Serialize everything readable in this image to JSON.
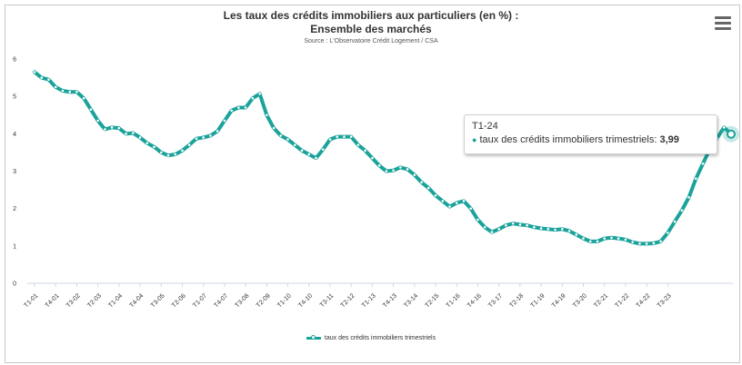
{
  "chart_data": {
    "type": "line",
    "title_line1": "Les taux des crédits immobiliers aux particuliers (en %) :",
    "title_line2": "Ensemble des marchés",
    "subtitle": "Source : L'Observatoire Crédit Logement / CSA",
    "ylim": [
      0,
      6
    ],
    "yticks": [
      0,
      1,
      2,
      3,
      4,
      5,
      6
    ],
    "grid": false,
    "legend_position": "bottom",
    "color": "#1aa39a",
    "x_tick_labels": [
      "T1-01",
      "T4-01",
      "T3-02",
      "T2-03",
      "T1-04",
      "T4-04",
      "T3-05",
      "T2-06",
      "T1-07",
      "T4-07",
      "T3-08",
      "T2-09",
      "T1-10",
      "T4-10",
      "T3-11",
      "T2-12",
      "T1-13",
      "T4-13",
      "T3-14",
      "T2-15",
      "T1-16",
      "T4-16",
      "T3-17",
      "T2-18",
      "T1-19",
      "T4-19",
      "T3-20",
      "T2-21",
      "T1-22",
      "T4-22",
      "T3-23"
    ],
    "series": [
      {
        "name": "taux des crédits immobiliers trimestriels",
        "values": [
          5.65,
          5.5,
          5.45,
          5.25,
          5.15,
          5.12,
          5.12,
          4.95,
          4.65,
          4.35,
          4.12,
          4.17,
          4.15,
          4.0,
          4.02,
          3.9,
          3.75,
          3.65,
          3.5,
          3.42,
          3.45,
          3.55,
          3.7,
          3.87,
          3.9,
          3.95,
          4.07,
          4.35,
          4.62,
          4.7,
          4.7,
          4.95,
          5.07,
          4.5,
          4.15,
          3.95,
          3.85,
          3.7,
          3.55,
          3.45,
          3.35,
          3.58,
          3.85,
          3.92,
          3.92,
          3.92,
          3.7,
          3.55,
          3.35,
          3.15,
          3.0,
          3.02,
          3.1,
          3.05,
          2.9,
          2.7,
          2.55,
          2.35,
          2.2,
          2.05,
          2.15,
          2.2,
          2.0,
          1.7,
          1.5,
          1.37,
          1.45,
          1.55,
          1.6,
          1.57,
          1.55,
          1.5,
          1.47,
          1.45,
          1.43,
          1.45,
          1.4,
          1.3,
          1.2,
          1.12,
          1.12,
          1.2,
          1.22,
          1.2,
          1.17,
          1.1,
          1.06,
          1.06,
          1.07,
          1.12,
          1.35,
          1.65,
          1.95,
          2.3,
          2.8,
          3.2,
          3.6,
          3.88,
          4.17,
          3.99
        ]
      }
    ],
    "tooltip": {
      "x": "T1-24",
      "series": "taux des crédits immobiliers trimestriels",
      "value_text": "3,99"
    }
  }
}
